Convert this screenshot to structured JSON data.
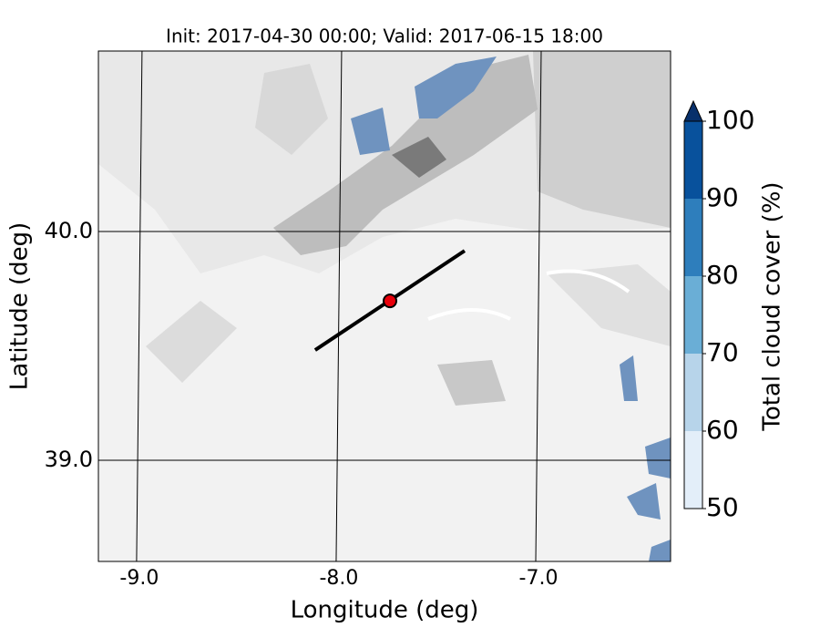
{
  "chart_data": {
    "type": "map",
    "title": "Init: 2017-04-30 00:00; Valid: 2017-06-15 18:00",
    "x_label": "Longitude (deg)",
    "y_label": "Latitude (deg)",
    "xlim": [
      -9.205,
      -6.338
    ],
    "ylim": [
      38.558,
      40.789
    ],
    "xticks": [
      {
        "value": -9,
        "label": "-9.0"
      },
      {
        "value": -8,
        "label": "-8.0"
      },
      {
        "value": -7,
        "label": "-7.0"
      }
    ],
    "yticks": [
      {
        "value": 39,
        "label": "39.0"
      },
      {
        "value": 40,
        "label": "40.0"
      }
    ],
    "grid": true,
    "section_line": {
      "lon": [
        -8.119,
        -7.37
      ],
      "lat": [
        39.482,
        39.916
      ],
      "color": "#000000"
    },
    "point": {
      "lon": -7.744,
      "lat": 39.697,
      "color": "#e8000b"
    },
    "colorbar": {
      "label": "Total cloud cover (%)",
      "lim": [
        50,
        100
      ],
      "ticks": [
        50,
        60,
        70,
        80,
        90,
        100
      ],
      "colors": [
        "#e3eef9",
        "#b7d4ea",
        "#6aaed6",
        "#2e7ebc",
        "#08519c"
      ],
      "extend_color": "#08306b"
    }
  }
}
